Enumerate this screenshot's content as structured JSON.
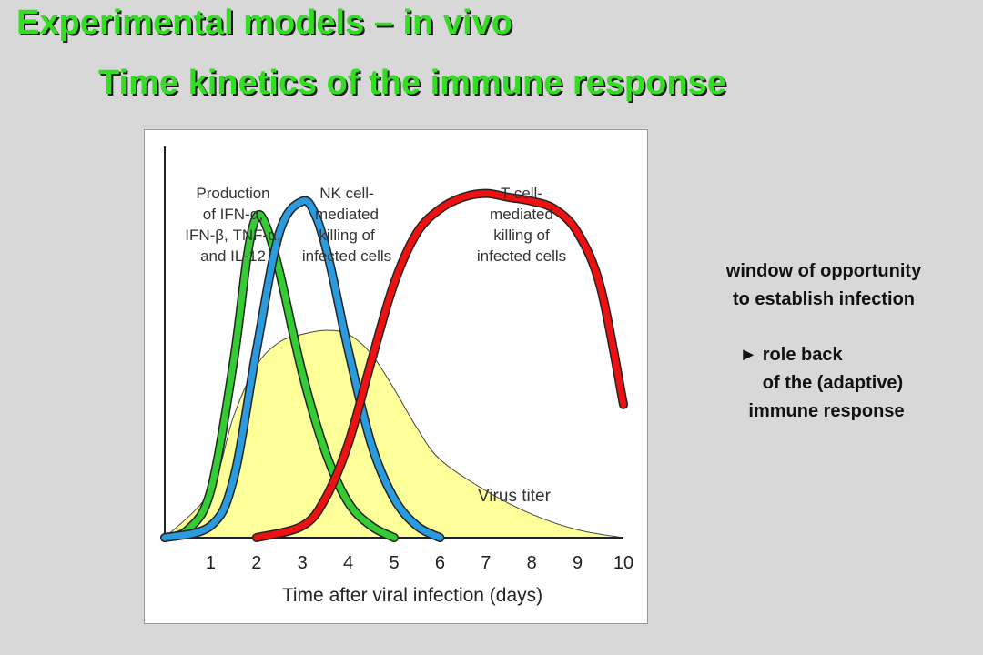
{
  "slide": {
    "title": "Experimental models – in vivo",
    "subtitle": "Time kinetics of the immune response"
  },
  "annotations": {
    "line1": "window of opportunity",
    "line2": "to establish infection",
    "line3": "► role back",
    "line4": "of the (adaptive)",
    "line5": "immune response"
  },
  "chart_data": {
    "type": "line",
    "xlabel": "Time after viral infection (days)",
    "ylabel": "",
    "xlim": [
      0,
      10
    ],
    "ylim": [
      0,
      1.0
    ],
    "x_ticks": [
      "1",
      "2",
      "3",
      "4",
      "5",
      "6",
      "7",
      "8",
      "9",
      "10"
    ],
    "grid": false,
    "series": [
      {
        "name": "Production of IFN-α, IFN-β, TNF-α, and IL-12",
        "label_lines": [
          "Production",
          "of IFN-α,",
          "IFN-β,  TNF-α,",
          "and  IL-12"
        ],
        "color": "#33cc33",
        "x": [
          0,
          0.5,
          1.0,
          1.5,
          1.8,
          2.0,
          2.2,
          2.5,
          3.0,
          3.5,
          4.0,
          4.5,
          5.0
        ],
        "y": [
          0.0,
          0.02,
          0.12,
          0.45,
          0.72,
          0.82,
          0.8,
          0.68,
          0.42,
          0.22,
          0.09,
          0.03,
          0.0
        ]
      },
      {
        "name": "NK cell-mediated killing of infected cells",
        "label_lines": [
          "NK cell-",
          "mediated",
          "killing of",
          "infected cells"
        ],
        "color": "#2b9be0",
        "x": [
          0,
          1.0,
          1.5,
          2.0,
          2.5,
          3.0,
          3.3,
          3.6,
          4.0,
          4.5,
          5.0,
          5.5,
          6.0
        ],
        "y": [
          0.0,
          0.03,
          0.15,
          0.48,
          0.78,
          0.86,
          0.82,
          0.7,
          0.48,
          0.24,
          0.1,
          0.03,
          0.0
        ]
      },
      {
        "name": "T cell-mediated killing of infected cells",
        "label_lines": [
          "T cell-",
          "mediated",
          "killing of",
          "infected cells"
        ],
        "color": "#ee1111",
        "x": [
          2.0,
          3.0,
          3.5,
          4.0,
          4.5,
          5.0,
          5.5,
          6.0,
          6.5,
          7.0,
          7.5,
          8.0,
          8.5,
          9.0,
          9.5,
          10.0
        ],
        "y": [
          0.0,
          0.03,
          0.1,
          0.24,
          0.45,
          0.65,
          0.78,
          0.84,
          0.87,
          0.88,
          0.87,
          0.86,
          0.84,
          0.78,
          0.64,
          0.34
        ]
      },
      {
        "name": "Virus titer",
        "label_lines": [
          "Virus titer"
        ],
        "color": "#ffff99",
        "x": [
          0,
          1.0,
          1.5,
          2.0,
          2.5,
          3.0,
          3.5,
          4.0,
          4.5,
          5.0,
          5.5,
          6.0,
          7.0,
          8.0,
          9.0,
          10.0
        ],
        "y": [
          0.0,
          0.12,
          0.31,
          0.44,
          0.5,
          0.52,
          0.53,
          0.52,
          0.47,
          0.38,
          0.28,
          0.2,
          0.12,
          0.06,
          0.02,
          0.0
        ]
      }
    ]
  }
}
